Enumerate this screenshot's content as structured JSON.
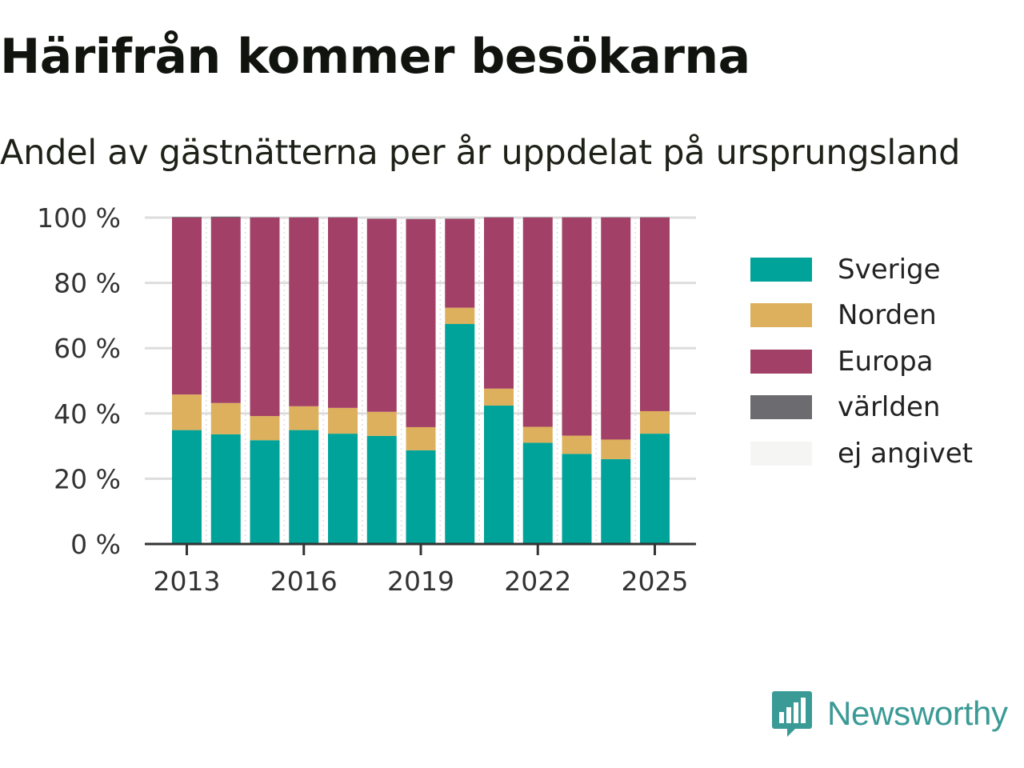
{
  "header": {
    "title": "Härifrån kommer besökarna",
    "subtitle": "Andel av gästnätterna per år uppdelat på ursprungsland"
  },
  "chart_data": {
    "type": "bar",
    "stacked": true,
    "x": [
      2013,
      2014,
      2015,
      2016,
      2017,
      2018,
      2019,
      2020,
      2021,
      2022,
      2023,
      2024,
      2025
    ],
    "x_tick_labels": [
      "2013",
      "2016",
      "2019",
      "2022",
      "2025"
    ],
    "x_tick_values": [
      2013,
      2016,
      2019,
      2022,
      2025
    ],
    "y_tick_labels": [
      "0 %",
      "20 %",
      "40 %",
      "60 %",
      "80 %",
      "100 %"
    ],
    "y_tick_values": [
      0,
      20,
      40,
      60,
      80,
      100
    ],
    "ylim": [
      0,
      100
    ],
    "grid": true,
    "legend_position": "right",
    "series": [
      {
        "name": "Sverige",
        "color": "#00a39a",
        "values": [
          34.9,
          33.6,
          31.8,
          34.9,
          33.8,
          33.1,
          28.7,
          67.4,
          42.4,
          31.0,
          27.6,
          26.0,
          33.8
        ]
      },
      {
        "name": "Norden",
        "color": "#dcb05c",
        "values": [
          10.9,
          9.6,
          7.4,
          7.3,
          7.9,
          7.4,
          7.1,
          5.0,
          5.2,
          4.9,
          5.6,
          6.0,
          6.9
        ]
      },
      {
        "name": "Europa",
        "color": "#a34067",
        "values": [
          54.2,
          56.8,
          60.8,
          57.8,
          58.3,
          59.1,
          63.7,
          27.2,
          52.4,
          64.1,
          66.8,
          68.0,
          59.3
        ]
      },
      {
        "name": "världen",
        "color": "#6c6b70",
        "values": [
          0.2,
          0.3,
          0.1,
          0.1,
          0.1,
          0.1,
          0.1,
          0.1,
          0.1,
          0.1,
          0.1,
          0.1,
          0.1
        ]
      },
      {
        "name": "ej angivet",
        "color": "#f5f5f4",
        "values": [
          0,
          0,
          0,
          0,
          0,
          0,
          0,
          0,
          0,
          0,
          0,
          0,
          0
        ]
      }
    ]
  },
  "brand": {
    "name": "Newsworthy",
    "logo_icon": "bar-chart-speech-bubble-icon",
    "color": "#3a9a95"
  }
}
